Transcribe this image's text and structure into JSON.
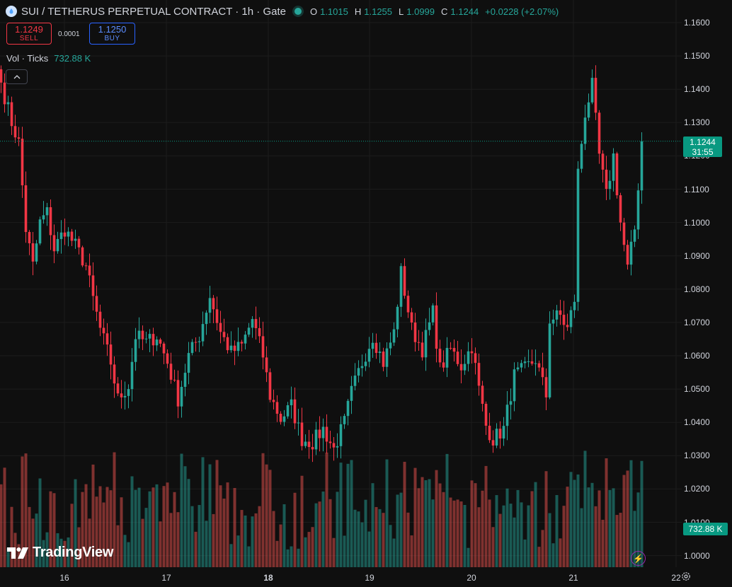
{
  "header": {
    "title": "SUI / TETHERUS PERPETUAL CONTRACT · 1h · Gate",
    "ohlc": [
      {
        "k": "O",
        "v": "1.1015"
      },
      {
        "k": "H",
        "v": "1.1255"
      },
      {
        "k": "L",
        "v": "1.0999"
      },
      {
        "k": "C",
        "v": "1.1244"
      }
    ],
    "change": "+0.0228 (+2.07%)"
  },
  "trade": {
    "sell_price": "1.1249",
    "sell_label": "SELL",
    "spread": "0.0001",
    "buy_price": "1.1250",
    "buy_label": "BUY"
  },
  "volume_legend": {
    "label": "Vol · Ticks",
    "value": "732.88 K"
  },
  "current_price": {
    "value": "1.1244",
    "countdown": "31:55"
  },
  "volume_tag": "732.88 K",
  "brand": "TradingView",
  "colors": {
    "up": "#26a69a",
    "down": "#f23645",
    "background": "#0f0f0f"
  },
  "icons": [
    "sui-logo-icon",
    "live-status-icon",
    "collapse-icon",
    "tradingview-logo-icon",
    "lightning-icon",
    "gear-icon"
  ],
  "chart_data": {
    "type": "candlestick",
    "price_axis_ticks": [
      "1.1600",
      "1.1500",
      "1.1400",
      "1.1300",
      "1.1200",
      "1.1100",
      "1.1000",
      "1.0900",
      "1.0800",
      "1.0700",
      "1.0600",
      "1.0500",
      "1.0400",
      "1.0300",
      "1.0200",
      "1.0100",
      "1.0000"
    ],
    "time_axis_ticks": [
      {
        "label": "16",
        "bold": false
      },
      {
        "label": "17",
        "bold": false
      },
      {
        "label": "18",
        "bold": true
      },
      {
        "label": "19",
        "bold": false
      },
      {
        "label": "20",
        "bold": false
      },
      {
        "label": "21",
        "bold": false
      },
      {
        "label": "22",
        "bold": false
      }
    ],
    "ylim": [
      1.0,
      1.16
    ],
    "grid": true,
    "current_price_line": 1.1244,
    "anchors_close": [
      [
        0,
        1.142
      ],
      [
        3,
        1.13
      ],
      [
        5,
        1.124
      ],
      [
        7,
        1.098
      ],
      [
        9,
        1.087
      ],
      [
        11,
        1.1
      ],
      [
        13,
        1.103
      ],
      [
        15,
        1.092
      ],
      [
        18,
        1.098
      ],
      [
        21,
        1.093
      ],
      [
        24,
        1.087
      ],
      [
        26,
        1.077
      ],
      [
        28,
        1.068
      ],
      [
        31,
        1.058
      ],
      [
        33,
        1.047
      ],
      [
        36,
        1.051
      ],
      [
        38,
        1.066
      ],
      [
        41,
        1.064
      ],
      [
        44,
        1.066
      ],
      [
        47,
        1.058
      ],
      [
        50,
        1.047
      ],
      [
        53,
        1.06
      ],
      [
        56,
        1.066
      ],
      [
        59,
        1.078
      ],
      [
        62,
        1.067
      ],
      [
        65,
        1.061
      ],
      [
        68,
        1.063
      ],
      [
        71,
        1.071
      ],
      [
        74,
        1.06
      ],
      [
        76,
        1.048
      ],
      [
        79,
        1.041
      ],
      [
        82,
        1.045
      ],
      [
        85,
        1.035
      ],
      [
        88,
        1.034
      ],
      [
        91,
        1.038
      ],
      [
        94,
        1.032
      ],
      [
        97,
        1.04
      ],
      [
        99,
        1.049
      ],
      [
        102,
        1.058
      ],
      [
        105,
        1.066
      ],
      [
        108,
        1.058
      ],
      [
        111,
        1.067
      ],
      [
        113,
        1.085
      ],
      [
        116,
        1.068
      ],
      [
        119,
        1.062
      ],
      [
        122,
        1.073
      ],
      [
        124,
        1.056
      ],
      [
        127,
        1.062
      ],
      [
        130,
        1.057
      ],
      [
        133,
        1.063
      ],
      [
        135,
        1.05
      ],
      [
        137,
        1.039
      ],
      [
        139,
        1.035
      ],
      [
        142,
        1.038
      ],
      [
        145,
        1.054
      ],
      [
        148,
        1.056
      ],
      [
        151,
        1.059
      ],
      [
        154,
        1.048
      ],
      [
        155,
        1.071
      ],
      [
        158,
        1.072
      ],
      [
        160,
        1.068
      ],
      [
        162,
        1.077
      ],
      [
        163,
        1.115
      ],
      [
        165,
        1.133
      ],
      [
        167,
        1.141
      ],
      [
        169,
        1.12
      ],
      [
        171,
        1.108
      ],
      [
        173,
        1.12
      ],
      [
        175,
        1.1
      ],
      [
        177,
        1.086
      ],
      [
        179,
        1.098
      ],
      [
        181,
        1.1244
      ]
    ],
    "volume_series": "Vol · Ticks",
    "volume_last": "732.88 K"
  }
}
